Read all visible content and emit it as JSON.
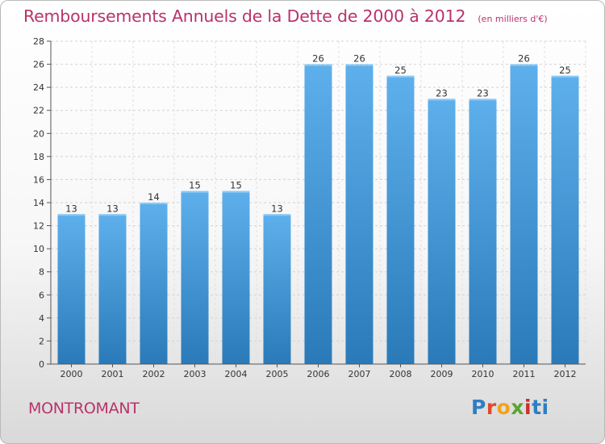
{
  "title": "Remboursements Annuels de la Dette de 2000 à 2012",
  "subtitle": "(en milliers d'€)",
  "place": "MONTROMANT",
  "logo": "Proxiti",
  "colors": {
    "title": "#b8336a",
    "bar_top": "#5eb0ec",
    "bar_bottom": "#2a7ab9"
  },
  "chart_data": {
    "type": "bar",
    "categories": [
      "2000",
      "2001",
      "2002",
      "2003",
      "2004",
      "2005",
      "2006",
      "2007",
      "2008",
      "2009",
      "2010",
      "2011",
      "2012"
    ],
    "values": [
      13,
      13,
      14,
      15,
      15,
      13,
      26,
      26,
      25,
      23,
      23,
      26,
      25
    ],
    "ylim": [
      0,
      28
    ],
    "yticks": [
      0,
      2,
      4,
      6,
      8,
      10,
      12,
      14,
      16,
      18,
      20,
      22,
      24,
      26,
      28
    ],
    "grid": true
  }
}
